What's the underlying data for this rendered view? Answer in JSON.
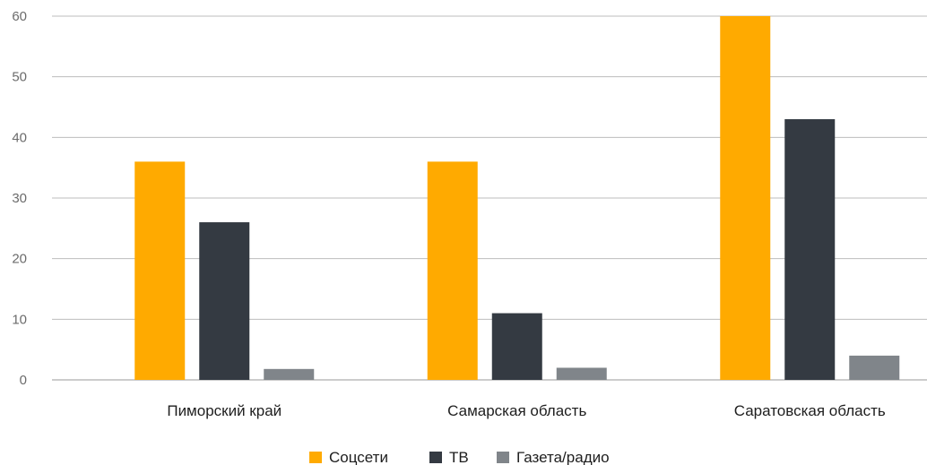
{
  "chart_data": {
    "type": "bar",
    "title": "",
    "xlabel": "",
    "ylabel": "",
    "categories": [
      "Пиморский край",
      "Самарская область",
      "Саратовская область"
    ],
    "series": [
      {
        "name": "Соцсети",
        "values": [
          36,
          36,
          60
        ],
        "color": "#FFAA00"
      },
      {
        "name": "ТВ",
        "values": [
          26,
          11,
          43
        ],
        "color": "#343A42"
      },
      {
        "name": "Газета/радио",
        "values": [
          1.8,
          2,
          4
        ],
        "color": "#80858A"
      }
    ],
    "ylim": [
      0,
      60
    ],
    "yticks": [
      0,
      10,
      20,
      30,
      40,
      50,
      60
    ],
    "grid": true,
    "legend_position": "bottom-center"
  }
}
